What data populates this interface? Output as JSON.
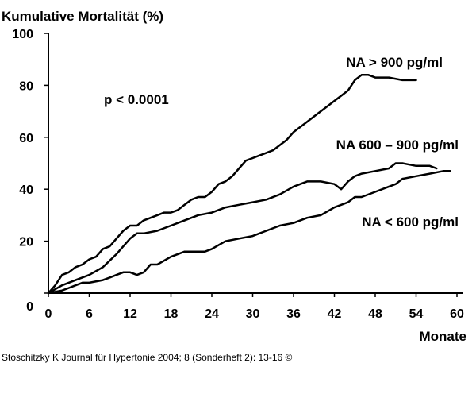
{
  "source_text": "Stoschitzky K Journal für Hypertonie 2004; 8 (Sonderheft 2): 13-16 ©",
  "chart_data": {
    "type": "line",
    "ylabel": "Kumulative Mortalität (%)",
    "xlabel": "Monate",
    "xlim": [
      0,
      60
    ],
    "ylim": [
      0,
      100
    ],
    "x_ticks": [
      "0",
      "6",
      "12",
      "18",
      "24",
      "30",
      "36",
      "42",
      "48",
      "54",
      "60"
    ],
    "y_ticks": [
      "0",
      "20",
      "40",
      "60",
      "80",
      "100"
    ],
    "annotation": "p < 0.0001",
    "grid": false,
    "series": [
      {
        "name": "NA > 900 pg/ml",
        "color": "#000000",
        "points": [
          [
            0,
            0
          ],
          [
            1,
            3
          ],
          [
            2,
            7
          ],
          [
            3,
            8
          ],
          [
            4,
            10
          ],
          [
            5,
            11
          ],
          [
            6,
            13
          ],
          [
            7,
            14
          ],
          [
            8,
            17
          ],
          [
            9,
            18
          ],
          [
            10,
            21
          ],
          [
            11,
            24
          ],
          [
            12,
            26
          ],
          [
            13,
            26
          ],
          [
            14,
            28
          ],
          [
            15,
            29
          ],
          [
            16,
            30
          ],
          [
            17,
            31
          ],
          [
            18,
            31
          ],
          [
            19,
            32
          ],
          [
            20,
            34
          ],
          [
            21,
            36
          ],
          [
            22,
            37
          ],
          [
            23,
            37
          ],
          [
            24,
            39
          ],
          [
            25,
            42
          ],
          [
            26,
            43
          ],
          [
            27,
            45
          ],
          [
            28,
            48
          ],
          [
            29,
            51
          ],
          [
            30,
            52
          ],
          [
            31,
            53
          ],
          [
            32,
            54
          ],
          [
            33,
            55
          ],
          [
            34,
            57
          ],
          [
            35,
            59
          ],
          [
            36,
            62
          ],
          [
            37,
            64
          ],
          [
            38,
            66
          ],
          [
            39,
            68
          ],
          [
            40,
            70
          ],
          [
            41,
            72
          ],
          [
            42,
            74
          ],
          [
            43,
            76
          ],
          [
            44,
            78
          ],
          [
            45,
            82
          ],
          [
            46,
            84
          ],
          [
            47,
            84
          ],
          [
            48,
            83
          ],
          [
            50,
            83
          ],
          [
            52,
            82
          ],
          [
            54,
            82
          ]
        ]
      },
      {
        "name": "NA 600 – 900 pg/ml",
        "color": "#000000",
        "points": [
          [
            0,
            0
          ],
          [
            2,
            3
          ],
          [
            4,
            5
          ],
          [
            6,
            7
          ],
          [
            8,
            10
          ],
          [
            10,
            15
          ],
          [
            11,
            18
          ],
          [
            12,
            21
          ],
          [
            13,
            23
          ],
          [
            14,
            23
          ],
          [
            16,
            24
          ],
          [
            18,
            26
          ],
          [
            20,
            28
          ],
          [
            22,
            30
          ],
          [
            24,
            31
          ],
          [
            26,
            33
          ],
          [
            28,
            34
          ],
          [
            30,
            35
          ],
          [
            32,
            36
          ],
          [
            34,
            38
          ],
          [
            36,
            41
          ],
          [
            38,
            43
          ],
          [
            40,
            43
          ],
          [
            42,
            42
          ],
          [
            43,
            40
          ],
          [
            44,
            43
          ],
          [
            45,
            45
          ],
          [
            46,
            46
          ],
          [
            48,
            47
          ],
          [
            50,
            48
          ],
          [
            51,
            50
          ],
          [
            52,
            50
          ],
          [
            54,
            49
          ],
          [
            56,
            49
          ],
          [
            57,
            48
          ]
        ]
      },
      {
        "name": "NA < 600 pg/ml",
        "color": "#000000",
        "points": [
          [
            0,
            0
          ],
          [
            2,
            1
          ],
          [
            3,
            2
          ],
          [
            4,
            3
          ],
          [
            5,
            4
          ],
          [
            6,
            4
          ],
          [
            8,
            5
          ],
          [
            9,
            6
          ],
          [
            10,
            7
          ],
          [
            11,
            8
          ],
          [
            12,
            8
          ],
          [
            13,
            7
          ],
          [
            14,
            8
          ],
          [
            15,
            11
          ],
          [
            16,
            11
          ],
          [
            18,
            14
          ],
          [
            20,
            16
          ],
          [
            22,
            16
          ],
          [
            23,
            16
          ],
          [
            24,
            17
          ],
          [
            26,
            20
          ],
          [
            28,
            21
          ],
          [
            30,
            22
          ],
          [
            32,
            24
          ],
          [
            34,
            26
          ],
          [
            36,
            27
          ],
          [
            37,
            28
          ],
          [
            38,
            29
          ],
          [
            40,
            30
          ],
          [
            42,
            33
          ],
          [
            44,
            35
          ],
          [
            45,
            37
          ],
          [
            46,
            37
          ],
          [
            48,
            39
          ],
          [
            50,
            41
          ],
          [
            51,
            42
          ],
          [
            52,
            44
          ],
          [
            54,
            45
          ],
          [
            56,
            46
          ],
          [
            58,
            47
          ],
          [
            59,
            47
          ]
        ]
      }
    ]
  }
}
